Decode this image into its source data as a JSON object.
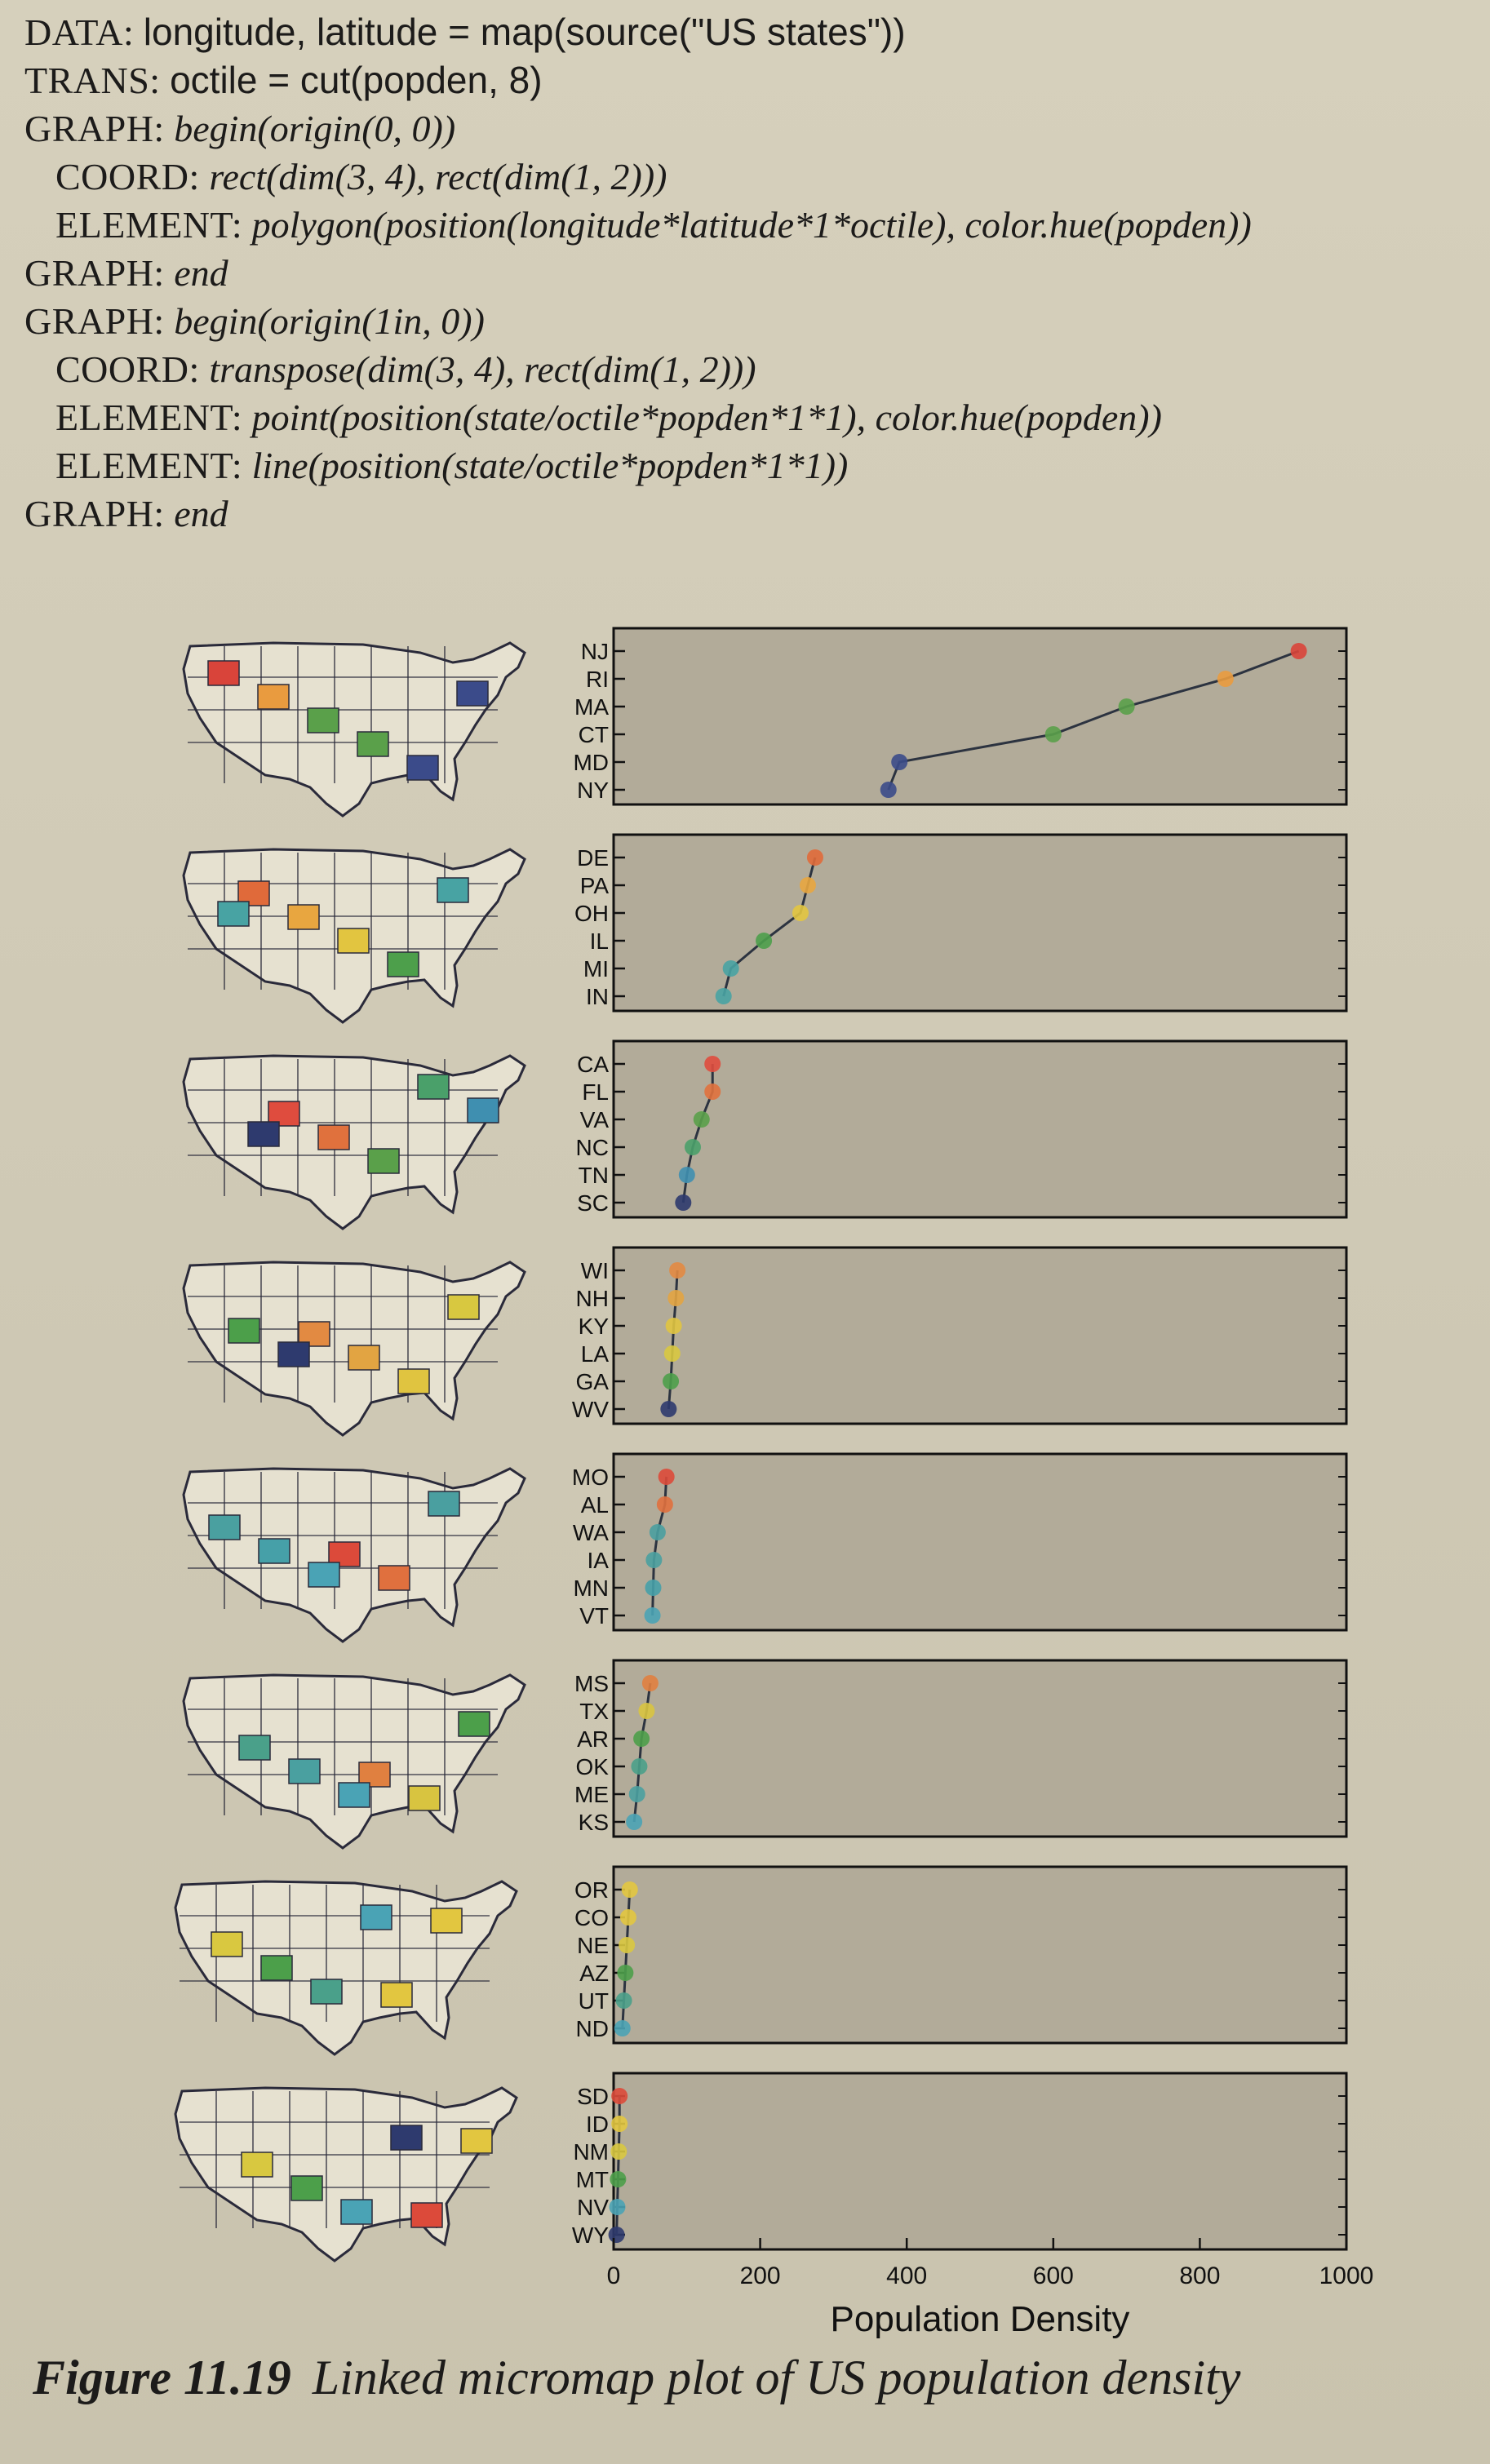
{
  "code": [
    {
      "kw": "DATA:",
      "text": "longitude, latitude = map(source(\"US states\"))"
    },
    {
      "kw": "TRANS:",
      "text": "octile = cut(popden, 8)"
    },
    {
      "kw": "GRAPH:",
      "text": "begin(origin(0, 0))"
    },
    {
      "kw": "COORD:",
      "text": "rect(dim(3, 4), rect(dim(1, 2)))"
    },
    {
      "kw": "ELEMENT:",
      "text": "polygon(position(longitude*latitude*1*octile), color.hue(popden))"
    },
    {
      "kw": "GRAPH:",
      "text": "end"
    },
    {
      "kw": "GRAPH:",
      "text": "begin(origin(1in, 0))"
    },
    {
      "kw": "COORD:",
      "text": "transpose(dim(3, 4), rect(dim(1, 2)))"
    },
    {
      "kw": "ELEMENT:",
      "text": "point(position(state/octile*popden*1*1), color.hue(popden))"
    },
    {
      "kw": "ELEMENT:",
      "text": "line(position(state/octile*popden*1*1))"
    },
    {
      "kw": "GRAPH:",
      "text": "end"
    }
  ],
  "chart_data": {
    "type": "scatter",
    "xlabel": "Population Density",
    "xlim": [
      0,
      1000
    ],
    "xticks": [
      0,
      200,
      400,
      600,
      800,
      1000
    ],
    "grid": false,
    "panels": [
      {
        "states": [
          "NJ",
          "RI",
          "MA",
          "CT",
          "MD",
          "NY"
        ],
        "values": [
          935,
          835,
          700,
          600,
          390,
          375
        ],
        "colors": [
          "#d9443a",
          "#e99b3f",
          "#5aa04a",
          "#5aa04a",
          "#3b4b8a",
          "#3b4b8a"
        ]
      },
      {
        "states": [
          "DE",
          "PA",
          "OH",
          "IL",
          "MI",
          "IN"
        ],
        "values": [
          275,
          265,
          255,
          205,
          160,
          150
        ],
        "colors": [
          "#e06a3a",
          "#e8a640",
          "#e2c540",
          "#4d9f4b",
          "#48a3a3",
          "#48a3a3"
        ]
      },
      {
        "states": [
          "CA",
          "FL",
          "VA",
          "NC",
          "TN",
          "SC"
        ],
        "values": [
          135,
          135,
          120,
          108,
          100,
          95
        ],
        "colors": [
          "#df4c3e",
          "#e0713d",
          "#5aa04a",
          "#4aa06a",
          "#3f8fb0",
          "#2e3a6e"
        ]
      },
      {
        "states": [
          "WI",
          "NH",
          "KY",
          "LA",
          "GA",
          "WV"
        ],
        "values": [
          87,
          85,
          82,
          80,
          78,
          75
        ],
        "colors": [
          "#e28a42",
          "#e2a442",
          "#e0c440",
          "#d8c840",
          "#4c9f4a",
          "#2e3a6e"
        ]
      },
      {
        "states": [
          "MO",
          "AL",
          "WA",
          "IA",
          "MN",
          "VT"
        ],
        "values": [
          72,
          70,
          60,
          55,
          54,
          53
        ],
        "colors": [
          "#dc4a3a",
          "#e0703e",
          "#4a9fa0",
          "#4aa0a0",
          "#46a0a8",
          "#4aa3b5"
        ]
      },
      {
        "states": [
          "MS",
          "TX",
          "AR",
          "OK",
          "ME",
          "KS"
        ],
        "values": [
          50,
          45,
          38,
          35,
          32,
          28
        ],
        "colors": [
          "#e08040",
          "#d8c440",
          "#4c9f4a",
          "#4aa08a",
          "#4aa0a0",
          "#4aa3b5"
        ]
      },
      {
        "states": [
          "OR",
          "CO",
          "NE",
          "AZ",
          "UT",
          "ND"
        ],
        "values": [
          22,
          20,
          18,
          16,
          14,
          12
        ],
        "colors": [
          "#e2c640",
          "#e2c640",
          "#d9c840",
          "#4c9f4a",
          "#4aa08a",
          "#4aa3b5"
        ]
      },
      {
        "states": [
          "SD",
          "ID",
          "NM",
          "MT",
          "NV",
          "WY"
        ],
        "values": [
          8,
          8,
          7,
          6,
          5,
          4
        ],
        "colors": [
          "#dc4a3a",
          "#e2c640",
          "#d8c840",
          "#4c9f4a",
          "#4aa3b5",
          "#2e3a6e"
        ]
      }
    ]
  },
  "caption": {
    "number": "Figure 11.19",
    "text": "Linked micromap plot of US population density"
  }
}
